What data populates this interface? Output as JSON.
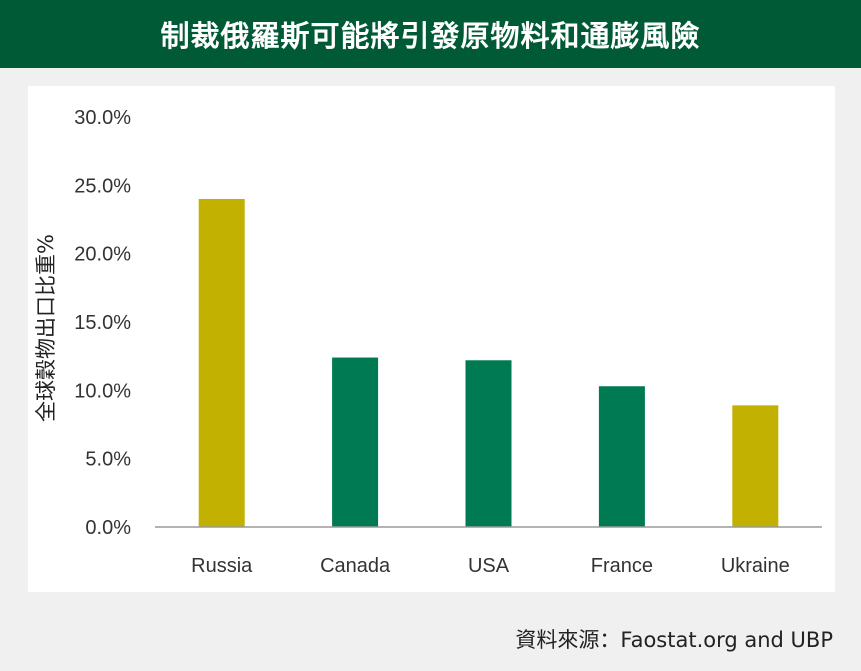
{
  "header": {
    "title": "制裁俄羅斯可能將引發原物料和通膨風險"
  },
  "source": "資料來源：Faostat.org and UBP",
  "chart_data": {
    "type": "bar",
    "title": "",
    "xlabel": "",
    "ylabel": "全球穀物出口比重%",
    "categories": [
      "Russia",
      "Canada",
      "USA",
      "France",
      "Ukraine"
    ],
    "values": [
      24.0,
      12.4,
      12.2,
      10.3,
      8.9
    ],
    "bar_colors": [
      "#c2b100",
      "#007a52",
      "#007a52",
      "#007a52",
      "#c2b100"
    ],
    "ylim": [
      0,
      30
    ],
    "yticks": [
      "0.0%",
      "5.0%",
      "10.0%",
      "15.0%",
      "20.0%",
      "25.0%",
      "30.0%"
    ],
    "grid": false,
    "legend": "none"
  }
}
